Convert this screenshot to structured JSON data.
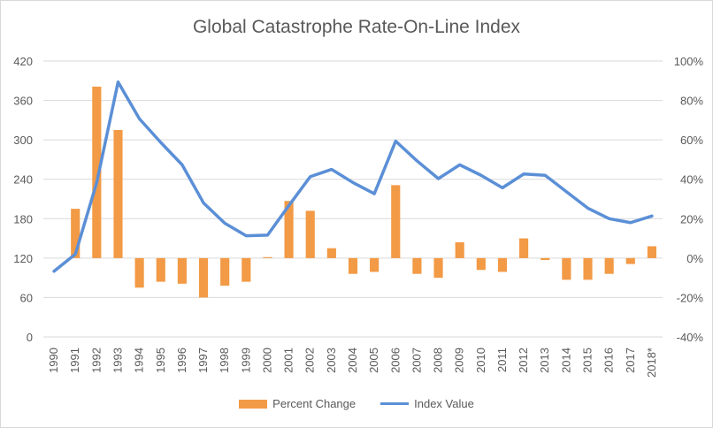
{
  "colors": {
    "bar": "#F29A45",
    "line": "#5B8FD6",
    "grid": "#d9d9d9",
    "text": "#595959"
  },
  "chart_data": {
    "type": "bar",
    "title": "Global Catastrophe Rate-On-Line Index",
    "categories": [
      "1990",
      "1991",
      "1992",
      "1993",
      "1994",
      "1995",
      "1996",
      "1997",
      "1998",
      "1999",
      "2000",
      "2001",
      "2002",
      "2003",
      "2004",
      "2005",
      "2006",
      "2007",
      "2008",
      "2009",
      "2010",
      "2011",
      "2012",
      "2013",
      "2014",
      "2015",
      "2016",
      "2017",
      "2018*"
    ],
    "series": [
      {
        "name": "Percent Change",
        "type": "bar",
        "axis": "right",
        "values": [
          0,
          25,
          87,
          65,
          -15,
          -12,
          -13,
          -20,
          -14,
          -12,
          0.5,
          29,
          24,
          5,
          -8,
          -7,
          37,
          -8,
          -10,
          8,
          -6,
          -7,
          10,
          -1,
          -11,
          -11,
          -8,
          -3,
          6
        ]
      },
      {
        "name": "Index Value",
        "type": "line",
        "axis": "left",
        "values": [
          100,
          126,
          235,
          388,
          332,
          296,
          262,
          204,
          173,
          154,
          155,
          200,
          244,
          255,
          235,
          218,
          298,
          268,
          241,
          262,
          246,
          227,
          248,
          246,
          221,
          196,
          180,
          174,
          184
        ]
      }
    ],
    "y_left": {
      "ticks": [
        "0",
        "60",
        "120",
        "180",
        "240",
        "300",
        "360",
        "420"
      ],
      "ylim": [
        0,
        420
      ]
    },
    "y_right": {
      "ticks": [
        "-40%",
        "-20%",
        "0%",
        "20%",
        "40%",
        "60%",
        "80%",
        "100%"
      ],
      "ylim": [
        -40,
        100
      ]
    },
    "grid": true,
    "legend_position": "bottom",
    "legend": [
      "Percent Change",
      "Index Value"
    ]
  }
}
